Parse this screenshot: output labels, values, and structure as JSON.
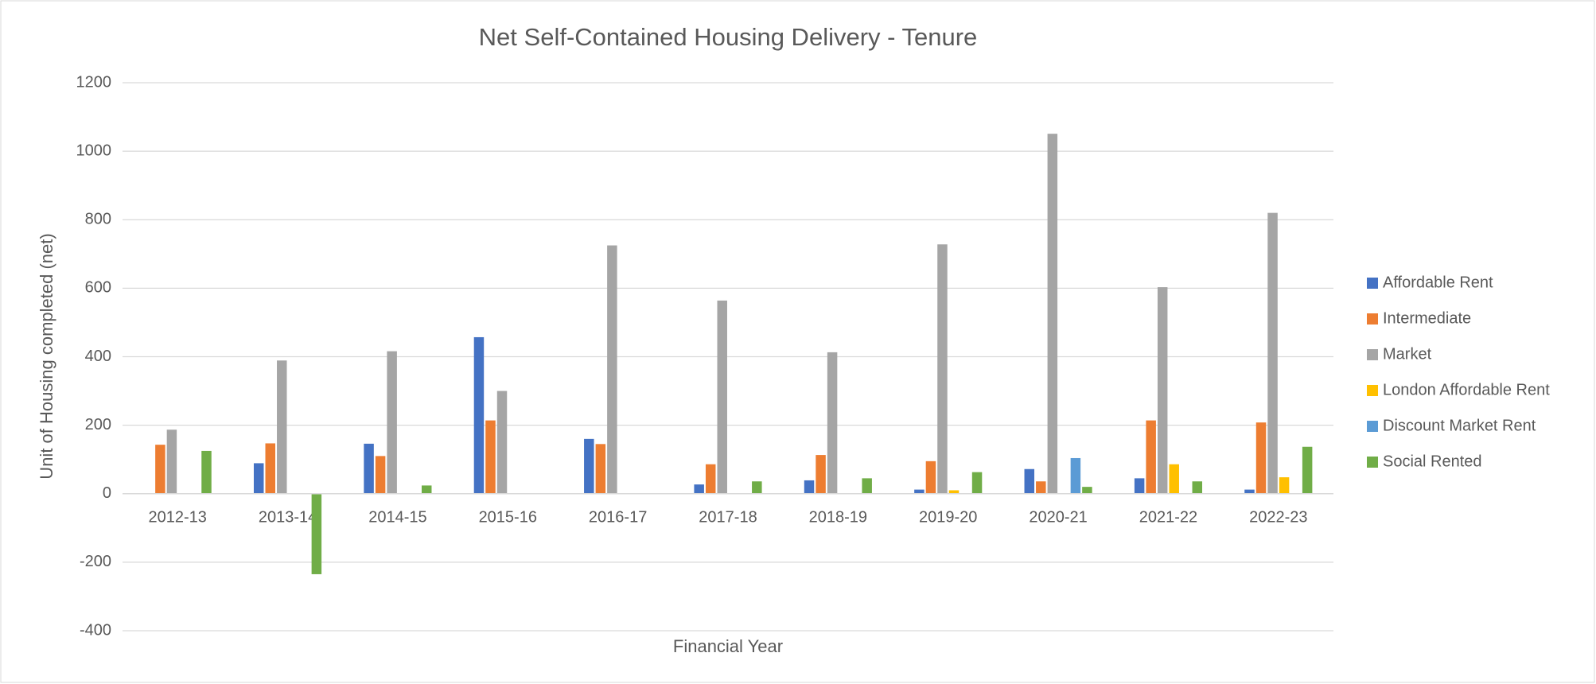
{
  "chart_data": {
    "type": "bar",
    "title": "Net Self-Contained Housing Delivery - Tenure",
    "x_label": "Financial Year",
    "y_label": "Unit of Housing completed (net)",
    "categories": [
      "2012-13",
      "2013-14",
      "2014-15",
      "2015-16",
      "2016-17",
      "2017-18",
      "2018-19",
      "2019-20",
      "2020-21",
      "2021-22",
      "2022-23"
    ],
    "series": [
      {
        "name": "Affordable Rent",
        "color": "#4472c4",
        "values": [
          null,
          89,
          146,
          457,
          160,
          27,
          39,
          12,
          72,
          45,
          12
        ]
      },
      {
        "name": "Intermediate",
        "color": "#ed7d31",
        "values": [
          143,
          147,
          110,
          214,
          145,
          86,
          113,
          95,
          36,
          214,
          208
        ]
      },
      {
        "name": "Market",
        "color": "#a5a5a5",
        "values": [
          187,
          389,
          416,
          300,
          725,
          564,
          413,
          728,
          1051,
          603,
          820
        ]
      },
      {
        "name": "London Affordable Rent",
        "color": "#ffc000",
        "values": [
          null,
          null,
          null,
          null,
          null,
          null,
          null,
          10,
          null,
          86,
          48
        ]
      },
      {
        "name": "Discount Market Rent",
        "color": "#5b9bd5",
        "values": [
          null,
          null,
          null,
          null,
          null,
          null,
          null,
          null,
          104,
          null,
          null
        ]
      },
      {
        "name": "Social Rented",
        "color": "#70ad47",
        "values": [
          125,
          -235,
          24,
          null,
          null,
          36,
          45,
          63,
          20,
          36,
          137
        ]
      }
    ],
    "ylim": [
      -400,
      1200
    ],
    "yticks": [
      -400,
      -200,
      0,
      200,
      400,
      600,
      800,
      1000,
      1200
    ],
    "grid": true,
    "legend": "right"
  }
}
